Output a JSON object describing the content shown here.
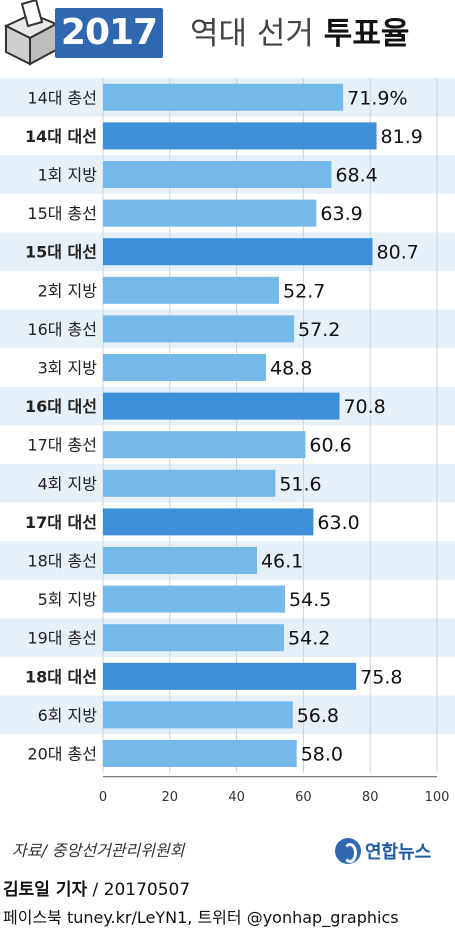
{
  "header": {
    "year": "2017",
    "title_light": "역대 선거",
    "title_bold": "투표율"
  },
  "chart_data": {
    "type": "bar",
    "orientation": "horizontal",
    "title": "역대 선거 투표율",
    "xlim": [
      0,
      100
    ],
    "x_ticks": [
      0,
      20,
      40,
      60,
      80,
      100
    ],
    "categories": [
      "14대 총선",
      "14대 대선",
      "1회 지방",
      "15대 총선",
      "15대 대선",
      "2회 지방",
      "16대 총선",
      "3회 지방",
      "16대 대선",
      "17대 총선",
      "4회 지방",
      "17대 대선",
      "18대 총선",
      "5회 지방",
      "19대 총선",
      "18대 대선",
      "6회 지방",
      "20대 총선"
    ],
    "values": [
      71.9,
      81.9,
      68.4,
      63.9,
      80.7,
      52.7,
      57.2,
      48.8,
      70.8,
      60.6,
      51.6,
      63.0,
      46.1,
      54.5,
      54.2,
      75.8,
      56.8,
      58.0
    ],
    "value_labels": [
      "71.9%",
      "81.9",
      "68.4",
      "63.9",
      "80.7",
      "52.7",
      "57.2",
      "48.8",
      "70.8",
      "60.6",
      "51.6",
      "63.0",
      "46.1",
      "54.5",
      "54.2",
      "75.8",
      "56.8",
      "58.0"
    ],
    "highlighted": [
      false,
      true,
      false,
      false,
      true,
      false,
      false,
      false,
      true,
      false,
      false,
      true,
      false,
      false,
      false,
      true,
      false,
      false
    ],
    "colors": {
      "bar": "#74b9ea",
      "bar_highlight": "#3d8fd8",
      "row_band": "#e6f0f9",
      "row_band_alt": "#ffffff",
      "grid": "#c9d3dc"
    }
  },
  "footer": {
    "source": "자료/ 중앙선거관리위원회",
    "logo_text": "연합뉴스",
    "author": "김토일 기자",
    "date_sep": " / 20170507",
    "social": "페이스북 tuney.kr/LeYN1, 트위터 @yonhap_graphics"
  }
}
